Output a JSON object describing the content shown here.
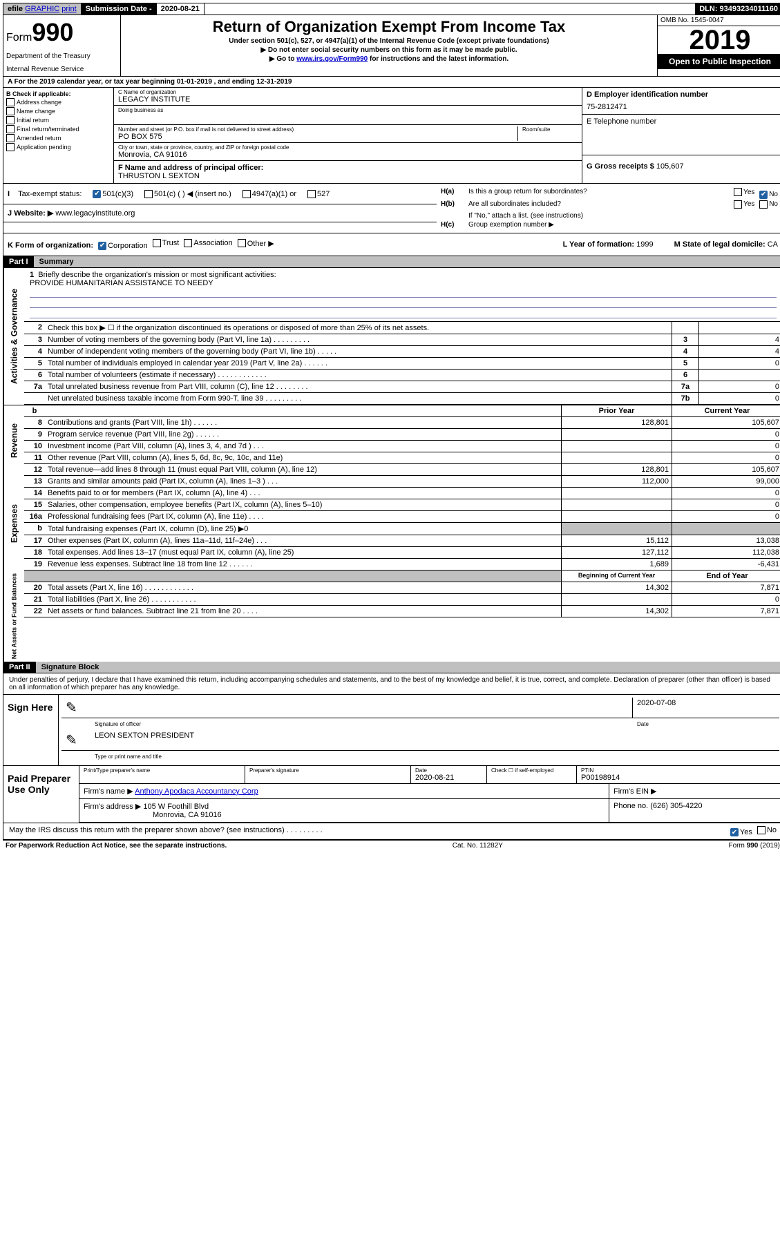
{
  "top": {
    "efile_prefix": "efile",
    "efile_graphic": "GRAPHIC",
    "efile_print": "print",
    "submission_label": "Submission Date - ",
    "submission_date": "2020-08-21",
    "dln": "DLN: 93493234011160"
  },
  "header": {
    "form_prefix": "Form",
    "form_number": "990",
    "dept1": "Department of the Treasury",
    "dept2": "Internal Revenue Service",
    "title": "Return of Organization Exempt From Income Tax",
    "sub1": "Under section 501(c), 527, or 4947(a)(1) of the Internal Revenue Code (except private foundations)",
    "sub2": "▶ Do not enter social security numbers on this form as it may be made public.",
    "sub3_pre": "▶ Go to ",
    "sub3_link": "www.irs.gov/Form990",
    "sub3_post": " for instructions and the latest information.",
    "omb": "OMB No. 1545-0047",
    "year": "2019",
    "open_public": "Open to Public Inspection"
  },
  "yearline": "A For the 2019 calendar year, or tax year beginning 01-01-2019     , and ending 12-31-2019",
  "checkB": {
    "label": "B Check if applicable:",
    "opts": [
      "Address change",
      "Name change",
      "Initial return",
      "Final return/terminated",
      "Amended return",
      "Application pending"
    ]
  },
  "entity": {
    "c_label": "C Name of organization",
    "c_name": "LEGACY INSTITUTE",
    "dba_label": "Doing business as",
    "addr_label": "Number and street (or P.O. box if mail is not delivered to street address)",
    "room_label": "Room/suite",
    "addr": "PO BOX 575",
    "city_label": "City or town, state or province, country, and ZIP or foreign postal code",
    "city": "Monrovia, CA  91016",
    "f_label": "F  Name and address of principal officer:",
    "f_name": "THRUSTON L SEXTON",
    "d_label": "D Employer identification number",
    "d_ein": "75-2812471",
    "e_label": "E Telephone number",
    "g_label": "G Gross receipts $ ",
    "g_amount": "105,607"
  },
  "h": {
    "ha_label": "H(a)",
    "ha_text": "Is this a group return for subordinates?",
    "hb_label": "H(b)",
    "hb_text": "Are all subordinates included?",
    "hb_note": "If \"No,\" attach a list. (see instructions)",
    "hc_label": "H(c)",
    "hc_text": "Group exemption number ▶",
    "yes": "Yes",
    "no": "No"
  },
  "i": {
    "label": "I",
    "text": "Tax-exempt status:",
    "opt1": "501(c)(3)",
    "opt2": "501(c) (   ) ◀ (insert no.)",
    "opt3": "4947(a)(1) or",
    "opt4": "527"
  },
  "j": {
    "label": "J",
    "text": "Website: ▶",
    "url": "www.legacyinstitute.org"
  },
  "k": {
    "label": "K Form of organization:",
    "opts": [
      "Corporation",
      "Trust",
      "Association",
      "Other ▶"
    ],
    "l_label": "L Year of formation: ",
    "l_val": "1999",
    "m_label": "M State of legal domicile: ",
    "m_val": "CA"
  },
  "part1": {
    "title": "Part I",
    "subtitle": "Summary"
  },
  "mission": {
    "num": "1",
    "label": "Briefly describe the organization's mission or most significant activities:",
    "text": "PROVIDE HUMANITARIAN ASSISTANCE TO NEEDY"
  },
  "governance_rows": [
    {
      "num": "2",
      "text": "Check this box ▶ ☐  if the organization discontinued its operations or disposed of more than 25% of its net assets.",
      "box": "",
      "val": ""
    },
    {
      "num": "3",
      "text": "Number of voting members of the governing body (Part VI, line 1a)  .    .    .    .    .    .    .    .    .",
      "box": "3",
      "val": "4"
    },
    {
      "num": "4",
      "text": "Number of independent voting members of the governing body (Part VI, line 1b)   .    .    .    .    .",
      "box": "4",
      "val": "4"
    },
    {
      "num": "5",
      "text": "Total number of individuals employed in calendar year 2019 (Part V, line 2a)  .    .    .    .    .    .",
      "box": "5",
      "val": "0"
    },
    {
      "num": "6",
      "text": "Total number of volunteers (estimate if necessary)    .    .    .    .    .    .    .    .    .    .    .    .",
      "box": "6",
      "val": ""
    },
    {
      "num": "7a",
      "text": "Total unrelated business revenue from Part VIII, column (C), line 12   .    .    .    .    .    .    .    .",
      "box": "7a",
      "val": "0"
    },
    {
      "num": "",
      "text": "Net unrelated business taxable income from Form 990-T, line 39   .    .    .    .    .    .    .    .    .",
      "box": "7b",
      "val": "0"
    }
  ],
  "data_header_b": "b",
  "prior_label": "Prior Year",
  "current_label": "Current Year",
  "revenue_rows": [
    {
      "num": "8",
      "text": "Contributions and grants (Part VIII, line 1h)    .    .    .    .    .    .",
      "prior": "128,801",
      "current": "105,607"
    },
    {
      "num": "9",
      "text": "Program service revenue (Part VIII, line 2g)    .    .    .    .    .    .",
      "prior": "",
      "current": "0"
    },
    {
      "num": "10",
      "text": "Investment income (Part VIII, column (A), lines 3, 4, and 7d )   .    .    .",
      "prior": "",
      "current": "0"
    },
    {
      "num": "11",
      "text": "Other revenue (Part VIII, column (A), lines 5, 6d, 8c, 9c, 10c, and 11e)",
      "prior": "",
      "current": "0"
    },
    {
      "num": "12",
      "text": "Total revenue—add lines 8 through 11 (must equal Part VIII, column (A), line 12)",
      "prior": "128,801",
      "current": "105,607"
    }
  ],
  "expense_rows": [
    {
      "num": "13",
      "text": "Grants and similar amounts paid (Part IX, column (A), lines 1–3 )   .    .    .",
      "prior": "112,000",
      "current": "99,000"
    },
    {
      "num": "14",
      "text": "Benefits paid to or for members (Part IX, column (A), line 4)   .    .    .",
      "prior": "",
      "current": "0"
    },
    {
      "num": "15",
      "text": "Salaries, other compensation, employee benefits (Part IX, column (A), lines 5–10)",
      "prior": "",
      "current": "0"
    },
    {
      "num": "16a",
      "text": "Professional fundraising fees (Part IX, column (A), line 11e)   .    .    .    .",
      "prior": "",
      "current": "0"
    },
    {
      "num": "b",
      "text": "Total fundraising expenses (Part IX, column (D), line 25) ▶0",
      "prior": "gray",
      "current": "gray"
    },
    {
      "num": "17",
      "text": "Other expenses (Part IX, column (A), lines 11a–11d, 11f–24e)   .    .    .",
      "prior": "15,112",
      "current": "13,038"
    },
    {
      "num": "18",
      "text": "Total expenses. Add lines 13–17 (must equal Part IX, column (A), line 25)",
      "prior": "127,112",
      "current": "112,038"
    },
    {
      "num": "19",
      "text": "Revenue less expenses. Subtract line 18 from line 12    .    .    .    .    .    .",
      "prior": "1,689",
      "current": "-6,431"
    }
  ],
  "balance_header": {
    "prior": "Beginning of Current Year",
    "current": "End of Year"
  },
  "balance_rows": [
    {
      "num": "20",
      "text": "Total assets (Part X, line 16)    .    .    .    .    .    .    .    .    .    .    .    .",
      "prior": "14,302",
      "current": "7,871"
    },
    {
      "num": "21",
      "text": "Total liabilities (Part X, line 26)    .    .    .    .    .    .    .    .    .    .    .",
      "prior": "",
      "current": "0"
    },
    {
      "num": "22",
      "text": "Net assets or fund balances. Subtract line 21 from line 20    .    .    .    .",
      "prior": "14,302",
      "current": "7,871"
    }
  ],
  "part2": {
    "title": "Part II",
    "subtitle": "Signature Block"
  },
  "sig": {
    "disclaimer": "Under penalties of perjury, I declare that I have examined this return, including accompanying schedules and statements, and to the best of my knowledge and belief, it is true, correct, and complete. Declaration of preparer (other than officer) is based on all information of which preparer has any knowledge.",
    "sign_here": "Sign Here",
    "sig_officer_label": "Signature of officer",
    "date_label": "Date",
    "date_val": "2020-07-08",
    "name_title": "LEON SEXTON PRESIDENT",
    "name_title_label": "Type or print name and title"
  },
  "paid": {
    "title": "Paid Preparer Use Only",
    "r1": {
      "c1_label": "Print/Type preparer's name",
      "c2_label": "Preparer's signature",
      "c3_label": "Date",
      "c3_val": "2020-08-21",
      "c4_label": "Check ☐ if self-employed",
      "c5_label": "PTIN",
      "c5_val": "P00198914"
    },
    "r2": {
      "label": "Firm's name    ▶ ",
      "val": "Anthony Apodaca Accountancy Corp",
      "ein_label": "Firm's EIN ▶"
    },
    "r3": {
      "label": "Firm's address ▶ ",
      "val1": "105 W Foothill Blvd",
      "val2": "Monrovia, CA  91016",
      "phone_label": "Phone no. ",
      "phone": "(626) 305-4220"
    }
  },
  "discuss": {
    "text": "May the IRS discuss this return with the preparer shown above? (see instructions)    .    .    .    .    .    .    .    .    .",
    "yes": "Yes",
    "no": "No"
  },
  "footer": {
    "left": "For Paperwork Reduction Act Notice, see the separate instructions.",
    "mid": "Cat. No. 11282Y",
    "right": "Form 990 (2019)"
  }
}
